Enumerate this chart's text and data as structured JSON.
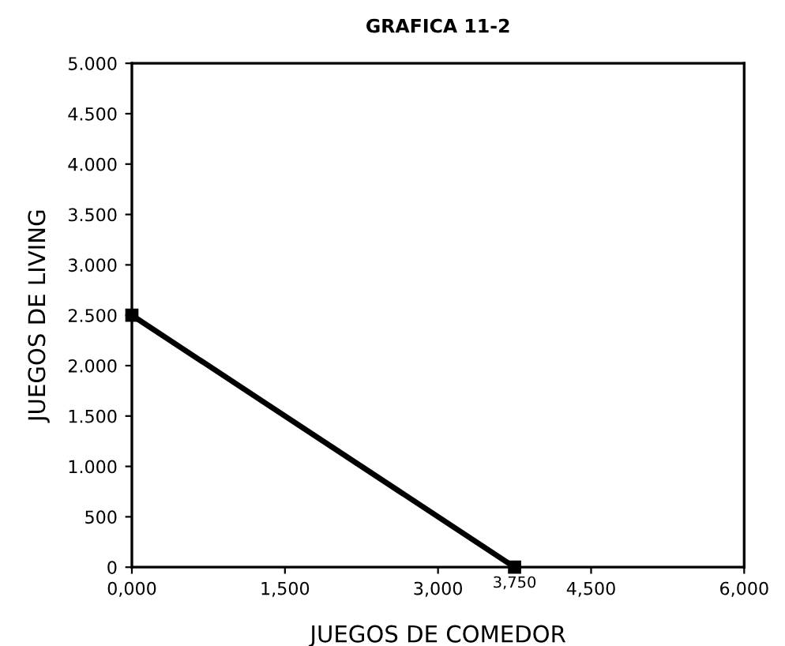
{
  "chart_data": {
    "type": "line",
    "title": "GRAFICA 11-2",
    "xlabel": "JUEGOS DE COMEDOR",
    "ylabel": "JUEGOS DE LIVING",
    "x": [
      0,
      3.75
    ],
    "series": [
      {
        "color": "#000000",
        "values": [
          2500,
          0
        ]
      }
    ],
    "marker": "square",
    "line_style": "solid",
    "xlim": [
      0,
      6
    ],
    "xticks": [
      {
        "value": 0,
        "label": "0,000"
      },
      {
        "value": 1.5,
        "label": "1,500"
      },
      {
        "value": 3,
        "label": "3,000"
      },
      {
        "value": 4.5,
        "label": "4,500"
      },
      {
        "value": 6,
        "label": "6,000"
      }
    ],
    "ylim": [
      0,
      5000
    ],
    "yticks": [
      0,
      500,
      {
        "value": 1000,
        "label": "1.000"
      },
      {
        "value": 1500,
        "label": "1.500"
      },
      {
        "value": 2000,
        "label": "2.000"
      },
      {
        "value": 2500,
        "label": "2.500"
      },
      {
        "value": 3000,
        "label": "3.000"
      },
      {
        "value": 3500,
        "label": "3.500"
      },
      {
        "value": 4000,
        "label": "4.000"
      },
      {
        "value": 4500,
        "label": "4.500"
      },
      {
        "value": 5000,
        "label": "5.000"
      }
    ],
    "annotations": [
      {
        "text": "3,750",
        "x": 3.75,
        "y": 0
      }
    ],
    "grid": false
  }
}
